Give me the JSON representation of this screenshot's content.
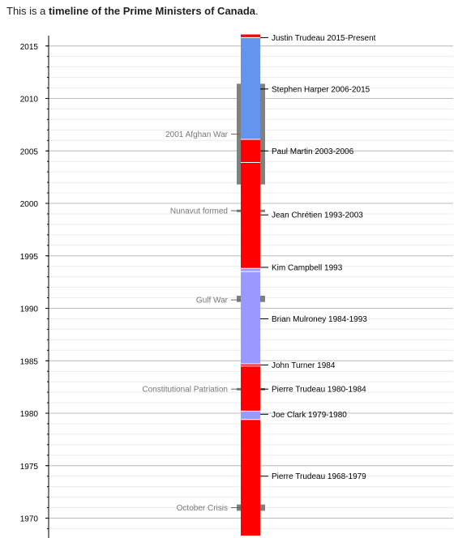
{
  "intro": {
    "prefix": "This is a ",
    "link_text": "timeline of the Prime Ministers of Canada",
    "suffix": "."
  },
  "chart_data": {
    "type": "timeline",
    "title": "",
    "axis": {
      "ylim": [
        1967.7,
        2016.1
      ],
      "major_ticks": [
        1970,
        1975,
        1980,
        1985,
        1990,
        1995,
        2000,
        2005,
        2010,
        2015
      ],
      "minor_step": 1
    },
    "colors": {
      "liberal": "#ff0000",
      "progressive_conservative": "#9999ff",
      "conservative": "#6495ed",
      "event": "#808080",
      "divider": "#ffffff"
    },
    "ministers": [
      {
        "label": "Pierre Trudeau 1968-1979",
        "start": 1968.3,
        "end": 1979.4,
        "party": "liberal",
        "label_y": 1974.0
      },
      {
        "label": "Joe Clark 1979-1980",
        "start": 1979.4,
        "end": 1980.2,
        "party": "progressive_conservative",
        "label_y": 1979.9
      },
      {
        "label": "Pierre Trudeau 1980-1984",
        "start": 1980.2,
        "end": 1984.5,
        "party": "liberal",
        "label_y": 1982.3
      },
      {
        "label": "John Turner 1984",
        "start": 1984.5,
        "end": 1984.7,
        "party": "liberal",
        "label_y": 1984.6
      },
      {
        "label": "Brian Mulroney 1984-1993",
        "start": 1984.7,
        "end": 1993.5,
        "party": "progressive_conservative",
        "label_y": 1989.0
      },
      {
        "label": "Kim Campbell 1993",
        "start": 1993.5,
        "end": 1993.8,
        "party": "progressive_conservative",
        "label_y": 1993.9
      },
      {
        "label": "Jean Chrétien 1993-2003",
        "start": 1993.8,
        "end": 2003.9,
        "party": "liberal",
        "label_y": 1998.9
      },
      {
        "label": "Paul Martin 2003-2006",
        "start": 2003.9,
        "end": 2006.1,
        "party": "liberal",
        "label_y": 2005.0
      },
      {
        "label": "Stephen Harper 2006-2015",
        "start": 2006.1,
        "end": 2015.8,
        "party": "conservative",
        "label_y": 2010.9
      },
      {
        "label": "Justin Trudeau 2015-Present",
        "start": 2015.8,
        "end": 2016.1,
        "party": "liberal",
        "label_y": 2015.8
      }
    ],
    "events": [
      {
        "label": "2001 Afghan War",
        "start": 2001.8,
        "end": 2011.4,
        "label_y": 2006.6
      },
      {
        "label": "Nunavut formed",
        "start": 1999.2,
        "end": 1999.4,
        "label_y": 1999.3
      },
      {
        "label": "Gulf War",
        "start": 1990.6,
        "end": 1991.2,
        "label_y": 1990.8
      },
      {
        "label": "Constitutional Patriation",
        "start": 1982.2,
        "end": 1982.4,
        "label_y": 1982.3
      },
      {
        "label": "October Crisis",
        "start": 1970.7,
        "end": 1971.3,
        "label_y": 1971.0
      }
    ]
  }
}
